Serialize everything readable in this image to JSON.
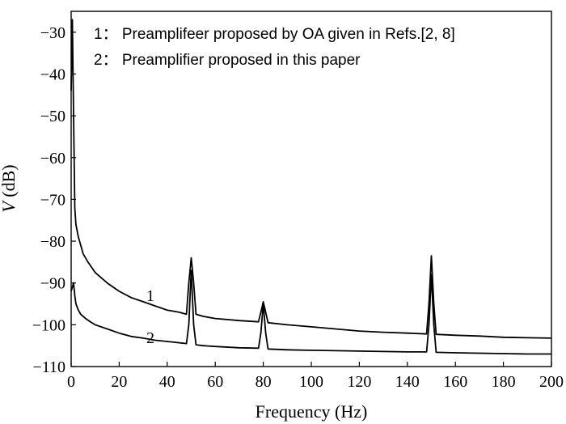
{
  "chart_data": {
    "type": "line",
    "xlabel": "Frequency (Hz)",
    "ylabel_var": "V",
    "ylabel_unit": " (dB)",
    "xlim": [
      0,
      200
    ],
    "ylim": [
      -110,
      -25
    ],
    "xticks": [
      0,
      20,
      40,
      60,
      80,
      100,
      120,
      140,
      160,
      180,
      200
    ],
    "yticks": [
      -30,
      -40,
      -50,
      -60,
      -70,
      -80,
      -90,
      -100,
      -110
    ],
    "ytick_labels": [
      "−30",
      "−40",
      "−50",
      "−60",
      "−70",
      "−80",
      "−90",
      "−100",
      "−110"
    ],
    "grid": false,
    "legend": {
      "placement": "top",
      "entries": [
        "1： Preamplifeer proposed by OA given in Refs.[2, 8]",
        "2： Preamplifier proposed in this paper"
      ]
    },
    "series": [
      {
        "curve_label": "1",
        "label_at": [
          35,
          -93
        ],
        "x": [
          0,
          0.5,
          1,
          1.5,
          2,
          3,
          4,
          5,
          7,
          10,
          15,
          20,
          25,
          30,
          35,
          40,
          45,
          48,
          49,
          50,
          51,
          52,
          55,
          60,
          70,
          78,
          79,
          80,
          81,
          82,
          90,
          100,
          110,
          120,
          130,
          140,
          148,
          149,
          150,
          151,
          152,
          160,
          170,
          180,
          190,
          200
        ],
        "y": [
          -44,
          -27,
          -50,
          -72,
          -76,
          -79,
          -81,
          -83,
          -85,
          -87.5,
          -90,
          -92,
          -93.5,
          -94.5,
          -95.5,
          -96.5,
          -97,
          -97.5,
          -90,
          -84,
          -90,
          -97.5,
          -98,
          -98.5,
          -99,
          -99.3,
          -97,
          -94.5,
          -97,
          -99.5,
          -100,
          -100.5,
          -101,
          -101.5,
          -101.8,
          -102,
          -102.2,
          -95,
          -83.5,
          -95,
          -102.3,
          -102.5,
          -102.7,
          -103,
          -103.1,
          -103.2
        ]
      },
      {
        "curve_label": "2",
        "label_at": [
          35,
          -103
        ],
        "x": [
          0,
          1,
          1.5,
          2,
          3,
          4,
          6,
          8,
          10,
          15,
          20,
          25,
          30,
          35,
          40,
          45,
          48,
          49,
          50,
          51,
          52,
          55,
          60,
          70,
          78,
          79,
          80,
          81,
          82,
          90,
          100,
          110,
          120,
          130,
          140,
          148,
          149,
          150,
          151,
          152,
          160,
          170,
          180,
          190,
          200
        ],
        "y": [
          -92,
          -90,
          -93,
          -95,
          -96.5,
          -97.5,
          -98.5,
          -99.3,
          -100,
          -101,
          -102,
          -102.8,
          -103.2,
          -103.7,
          -104,
          -104.3,
          -104.5,
          -100,
          -87,
          -100,
          -104.8,
          -105,
          -105.2,
          -105.5,
          -105.6,
          -102,
          -95,
          -102,
          -105.8,
          -106,
          -106.1,
          -106.2,
          -106.3,
          -106.4,
          -106.5,
          -106.5,
          -100,
          -88,
          -100,
          -106.6,
          -106.7,
          -106.8,
          -106.9,
          -107,
          -107
        ]
      }
    ]
  }
}
